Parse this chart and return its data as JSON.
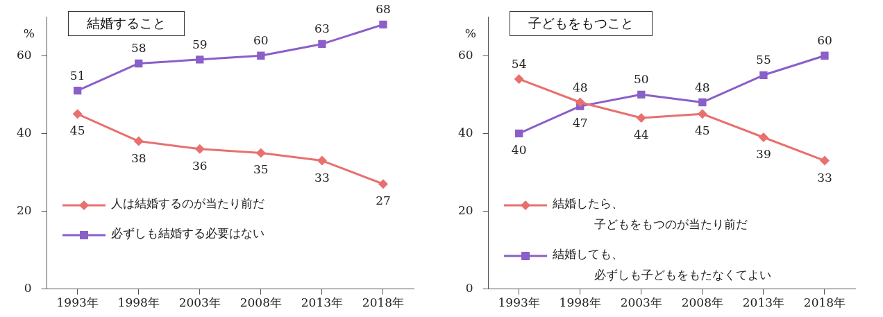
{
  "chart_data": [
    {
      "type": "line",
      "title": "結婚すること",
      "ylabel": "%",
      "categories": [
        "1993年",
        "1998年",
        "2003年",
        "2008年",
        "2013年",
        "2018年"
      ],
      "ylim": [
        0,
        70
      ],
      "yticks": [
        0,
        20,
        40,
        60
      ],
      "grid": false,
      "legend": "bottom left",
      "data_labels": true,
      "series": [
        {
          "name": "人は結婚するのが当たり前だ",
          "color": "#e8706f",
          "marker": "diamond",
          "values": [
            45,
            38,
            36,
            35,
            33,
            27
          ]
        },
        {
          "name": "必ずしも結婚する必要はない",
          "color": "#8a5fc8",
          "marker": "square",
          "values": [
            51,
            58,
            59,
            60,
            63,
            68
          ]
        }
      ]
    },
    {
      "type": "line",
      "title": "子どもをもつこと",
      "ylabel": "%",
      "categories": [
        "1993年",
        "1998年",
        "2003年",
        "2008年",
        "2013年",
        "2018年"
      ],
      "ylim": [
        0,
        70
      ],
      "yticks": [
        0,
        20,
        40,
        60
      ],
      "grid": false,
      "legend": "bottom left",
      "data_labels": true,
      "series": [
        {
          "name": "結婚したら、子どもをもつのが当たり前だ",
          "color": "#e8706f",
          "marker": "diamond",
          "values": [
            54,
            48,
            44,
            45,
            39,
            33
          ]
        },
        {
          "name": "結婚しても、必ずしも子どもをもたなくてよい",
          "color": "#8a5fc8",
          "marker": "square",
          "values": [
            40,
            47,
            50,
            48,
            55,
            60
          ]
        }
      ]
    }
  ]
}
